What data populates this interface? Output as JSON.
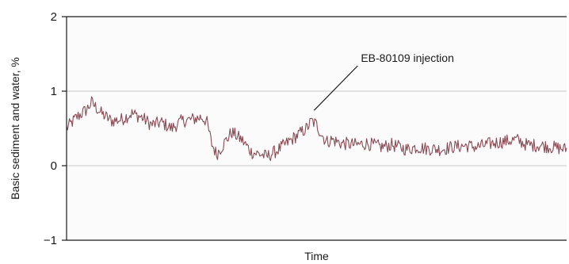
{
  "chart_data": {
    "type": "line",
    "title": "",
    "xlabel": "Time",
    "ylabel": "Basic sediment and water, %",
    "ylim": [
      -1,
      2
    ],
    "yticks": [
      -1,
      0,
      1,
      2
    ],
    "ytick_labels": [
      "−1",
      "0",
      "1",
      "2"
    ],
    "grid": "horizontal lines at y = 0 and y = 1",
    "x_axis_units": "fraction of time span (0 = start, 1 = end), no tick labels shown",
    "series": [
      {
        "color": "#8a4a54",
        "x": [
          0.0,
          0.02,
          0.04,
          0.05,
          0.07,
          0.09,
          0.11,
          0.13,
          0.15,
          0.17,
          0.19,
          0.21,
          0.23,
          0.25,
          0.27,
          0.28,
          0.29,
          0.3,
          0.31,
          0.32,
          0.33,
          0.35,
          0.37,
          0.39,
          0.4,
          0.42,
          0.44,
          0.46,
          0.48,
          0.49,
          0.5,
          0.51,
          0.52,
          0.53,
          0.55,
          0.58,
          0.6,
          0.63,
          0.65,
          0.68,
          0.7,
          0.72,
          0.75,
          0.77,
          0.8,
          0.82,
          0.85,
          0.87,
          0.9,
          0.92,
          0.95,
          0.97,
          1.0
        ],
        "y": [
          0.5,
          0.65,
          0.75,
          0.85,
          0.7,
          0.6,
          0.62,
          0.7,
          0.65,
          0.55,
          0.58,
          0.5,
          0.6,
          0.62,
          0.65,
          0.6,
          0.3,
          0.15,
          0.25,
          0.35,
          0.45,
          0.35,
          0.18,
          0.15,
          0.12,
          0.2,
          0.3,
          0.4,
          0.5,
          0.6,
          0.55,
          0.42,
          0.32,
          0.35,
          0.3,
          0.28,
          0.3,
          0.25,
          0.28,
          0.22,
          0.25,
          0.23,
          0.22,
          0.25,
          0.27,
          0.25,
          0.3,
          0.32,
          0.35,
          0.28,
          0.27,
          0.25,
          0.22
        ],
        "noise_amplitude": 0.09
      }
    ],
    "annotations": [
      {
        "text": "EB-80109 injection",
        "x": 0.495,
        "y": 0.7
      }
    ]
  }
}
